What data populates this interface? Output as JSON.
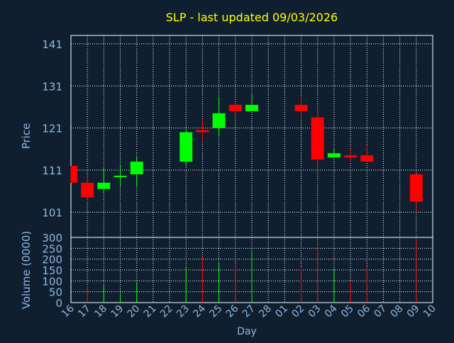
{
  "title": "SLP - last updated 09/03/2026",
  "colors": {
    "background": "#0f1f30",
    "frame": "#ffffff",
    "grid": "#ffffff",
    "axis_text": "#8fb8e0",
    "title": "#ffff00",
    "up": "#00ff00",
    "down": "#ff0000"
  },
  "chart_data": [
    {
      "type": "candlestick",
      "title": "SLP - last updated 09/03/2026",
      "ylabel": "Price",
      "ylim": [
        95,
        143
      ],
      "yticks": [
        101,
        111,
        121,
        131,
        141
      ],
      "grid": true,
      "x_categories": [
        "16",
        "17",
        "18",
        "19",
        "20",
        "21",
        "22",
        "23",
        "24",
        "25",
        "26",
        "27",
        "28",
        "01",
        "02",
        "03",
        "04",
        "05",
        "06",
        "07",
        "08",
        "09",
        "10"
      ],
      "candles": [
        {
          "day": "16",
          "open": 112.0,
          "high": 112.0,
          "low": 108.0,
          "close": 108.0
        },
        {
          "day": "17",
          "open": 108.0,
          "high": 110.0,
          "low": 104.0,
          "close": 104.5
        },
        {
          "day": "18",
          "open": 106.5,
          "high": 111.5,
          "low": 105.5,
          "close": 108.0
        },
        {
          "day": "19",
          "open": 109.5,
          "high": 112.0,
          "low": 107.0,
          "close": 109.5
        },
        {
          "day": "20",
          "open": 110.0,
          "high": 114.0,
          "low": 107.0,
          "close": 113.0
        },
        {
          "day": "23",
          "open": 113.0,
          "high": 120.5,
          "low": 112.0,
          "close": 120.0
        },
        {
          "day": "24",
          "open": 120.5,
          "high": 123.0,
          "low": 118.0,
          "close": 120.0
        },
        {
          "day": "25",
          "open": 121.0,
          "high": 128.5,
          "low": 119.0,
          "close": 124.5
        },
        {
          "day": "26",
          "open": 126.5,
          "high": 127.0,
          "low": 123.0,
          "close": 125.0
        },
        {
          "day": "27",
          "open": 125.0,
          "high": 129.0,
          "low": 125.0,
          "close": 126.5
        },
        {
          "day": "02",
          "open": 126.5,
          "high": 128.5,
          "low": 123.0,
          "close": 125.0
        },
        {
          "day": "03",
          "open": 123.5,
          "high": 125.0,
          "low": 111.0,
          "close": 113.5
        },
        {
          "day": "04",
          "open": 114.0,
          "high": 116.0,
          "low": 114.0,
          "close": 115.0
        },
        {
          "day": "05",
          "open": 114.5,
          "high": 116.0,
          "low": 113.0,
          "close": 114.0
        },
        {
          "day": "06",
          "open": 114.5,
          "high": 117.0,
          "low": 113.0,
          "close": 113.0
        },
        {
          "day": "09",
          "open": 110.0,
          "high": 110.0,
          "low": 101.0,
          "close": 103.5
        }
      ]
    },
    {
      "type": "bar",
      "ylabel": "Volume (0000)",
      "xlabel": "Day",
      "ylim": [
        0,
        300
      ],
      "yticks": [
        0,
        50,
        100,
        150,
        200,
        250,
        300
      ],
      "grid": true,
      "categories": [
        "16",
        "17",
        "18",
        "19",
        "20",
        "21",
        "22",
        "23",
        "24",
        "25",
        "26",
        "27",
        "28",
        "01",
        "02",
        "03",
        "04",
        "05",
        "06",
        "07",
        "08",
        "09",
        "10"
      ],
      "values": [
        0,
        75,
        80,
        40,
        95,
        0,
        0,
        160,
        210,
        180,
        175,
        235,
        0,
        0,
        170,
        265,
        155,
        95,
        170,
        0,
        0,
        290,
        0
      ],
      "directions": [
        "",
        "down",
        "up",
        "up",
        "up",
        "",
        "",
        "up",
        "down",
        "up",
        "down",
        "up",
        "",
        "",
        "down",
        "down",
        "up",
        "down",
        "down",
        "",
        "",
        "down",
        ""
      ]
    }
  ]
}
